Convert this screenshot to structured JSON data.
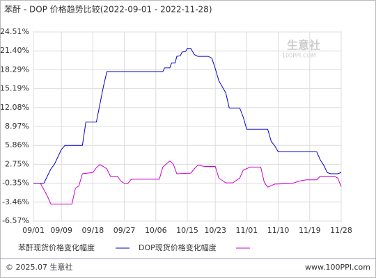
{
  "chart_data": {
    "type": "line",
    "title": "苯酐 - DOP 价格趋势比较(2022-09-01 - 2022-11-28)",
    "xlim": [
      0,
      88
    ],
    "xticks": [
      {
        "value": 0,
        "label": "09/01"
      },
      {
        "value": 8,
        "label": "09/09"
      },
      {
        "value": 17,
        "label": "09/18"
      },
      {
        "value": 26,
        "label": "09/27"
      },
      {
        "value": 35,
        "label": "10/06"
      },
      {
        "value": 44,
        "label": "10/15"
      },
      {
        "value": 52,
        "label": "10/23"
      },
      {
        "value": 61,
        "label": "11/01"
      },
      {
        "value": 70,
        "label": "11/10"
      },
      {
        "value": 79,
        "label": "11/19"
      },
      {
        "value": 88,
        "label": "11/28"
      }
    ],
    "ylim": [
      -6.57,
      24.51
    ],
    "yticks": [
      {
        "value": 24.51,
        "label": "24.51%"
      },
      {
        "value": 21.4,
        "label": "21.40%"
      },
      {
        "value": 18.29,
        "label": "18.29%"
      },
      {
        "value": 15.19,
        "label": "15.19%"
      },
      {
        "value": 12.08,
        "label": "12.08%"
      },
      {
        "value": 8.97,
        "label": "8.97%"
      },
      {
        "value": 5.86,
        "label": "5.86%"
      },
      {
        "value": 2.75,
        "label": "2.75%"
      },
      {
        "value": -0.35,
        "label": "-0.35%"
      },
      {
        "value": -3.46,
        "label": "-3.46%"
      },
      {
        "value": -6.57,
        "label": "-6.57%"
      }
    ],
    "grid": true,
    "series": [
      {
        "name": "苯酐现货价格变化幅度",
        "color": "#0000cc",
        "x": [
          0,
          3,
          5,
          6,
          8,
          9,
          14,
          15,
          18,
          20,
          21,
          37,
          37.5,
          39,
          39.5,
          40.5,
          41,
          42,
          42.5,
          43.5,
          44,
          45,
          46,
          47,
          50,
          51,
          52,
          53,
          55,
          56,
          59,
          60,
          61,
          67,
          68,
          69,
          70,
          81,
          82,
          83,
          84,
          85,
          87,
          88
        ],
        "values": [
          -0.35,
          -0.35,
          2,
          2.75,
          5.2,
          5.86,
          5.86,
          9.7,
          9.7,
          15.5,
          18,
          18,
          18.6,
          18.6,
          19.4,
          19.4,
          20.5,
          20.6,
          21.2,
          21.3,
          21.8,
          21.8,
          20.8,
          20.5,
          20.5,
          20.2,
          18.5,
          16.5,
          14.5,
          12,
          12,
          10.5,
          8.5,
          8.5,
          6.5,
          5.8,
          4.8,
          4.8,
          3.5,
          2.6,
          1.4,
          1.2,
          1.2,
          1.4
        ]
      },
      {
        "name": "DOP现货价格变化幅度",
        "color": "#cc00cc",
        "x": [
          0,
          2,
          4,
          5,
          11,
          12,
          13,
          14,
          17,
          18,
          19,
          20,
          21,
          22,
          24,
          25,
          26,
          27,
          28,
          36,
          37,
          38,
          39,
          40,
          41,
          45,
          46,
          47,
          49,
          52,
          53,
          55,
          57,
          59,
          60,
          62,
          65,
          66,
          67,
          69,
          74,
          76,
          78,
          81,
          82,
          86,
          87,
          88
        ],
        "values": [
          -0.35,
          -0.35,
          -2.5,
          -3.8,
          -3.8,
          -1.2,
          -0.8,
          1.2,
          1.4,
          2.2,
          2.7,
          2.4,
          2,
          0.8,
          0.8,
          0,
          -0.4,
          -0.4,
          0.3,
          0.3,
          2.3,
          2.8,
          3.3,
          2.8,
          1.2,
          1.3,
          2,
          2.6,
          2.4,
          2.4,
          0.5,
          -0.3,
          -0.3,
          0.5,
          1.8,
          2.3,
          2.3,
          -0.2,
          -1,
          -0.5,
          -0.4,
          0,
          0.2,
          0.2,
          0.8,
          0.8,
          0.5,
          -0.9
        ]
      }
    ],
    "watermark": {
      "name": "生意社",
      "site": "100PPI.COM"
    },
    "footer": {
      "left": "© 2025.07 生意社",
      "right": "www.100PPI.com"
    }
  }
}
